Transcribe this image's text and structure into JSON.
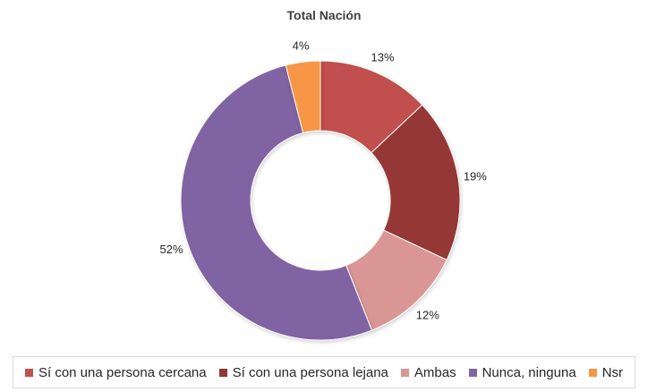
{
  "chart_data": {
    "type": "pie",
    "variant": "donut",
    "title": "Total Nación",
    "legend_position": "bottom",
    "slices": [
      {
        "label": "Sí con una persona cercana",
        "value": 13,
        "value_label": "13%",
        "color": "#c0504d"
      },
      {
        "label": "Sí con una persona lejana",
        "value": 19,
        "value_label": "19%",
        "color": "#953735"
      },
      {
        "label": "Ambas",
        "value": 12,
        "value_label": "12%",
        "color": "#d99694"
      },
      {
        "label": "Nunca, ninguna",
        "value": 52,
        "value_label": "52%",
        "color": "#8064a2"
      },
      {
        "label": "Nsr",
        "value": 4,
        "value_label": "4%",
        "color": "#f79646"
      }
    ]
  }
}
